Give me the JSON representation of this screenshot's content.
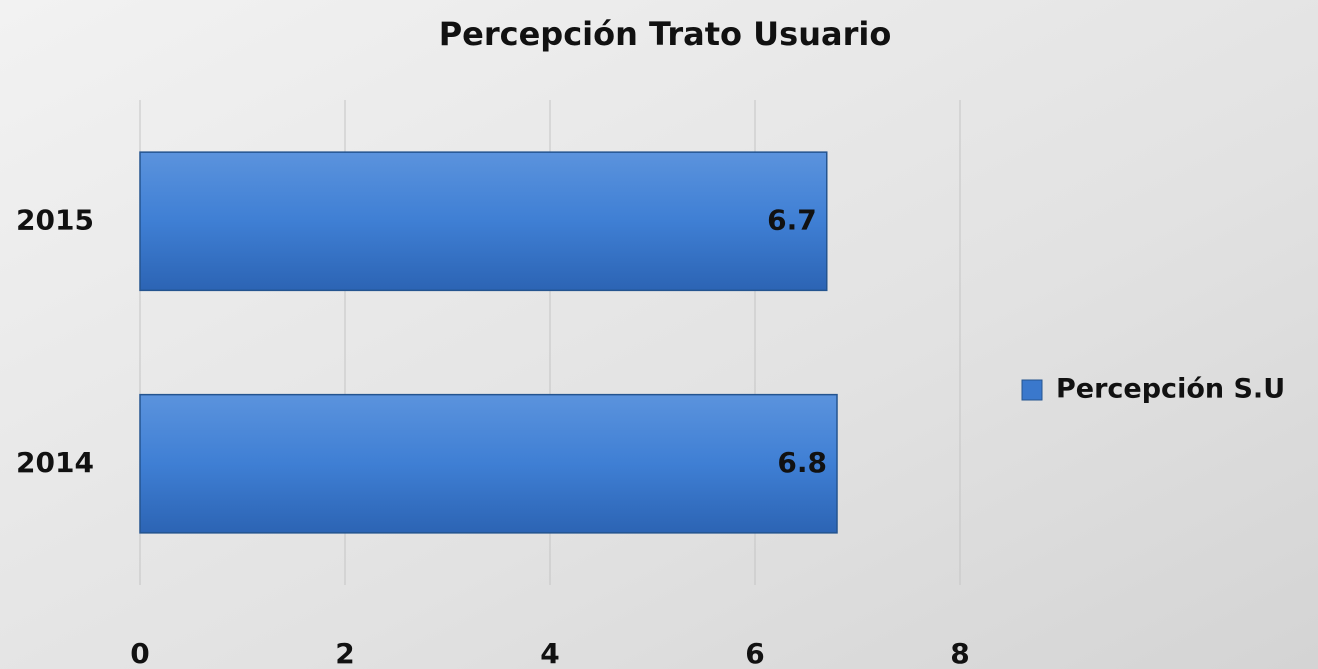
{
  "chart_data": {
    "type": "bar",
    "orientation": "horizontal",
    "title": "Percepción Trato Usuario",
    "categories": [
      "2015",
      "2014"
    ],
    "series": [
      {
        "name": "Percepción S.U",
        "color": "#3a78cc",
        "values": [
          6.7,
          6.8
        ]
      }
    ],
    "xlim": [
      0,
      8
    ],
    "xticks": [
      0,
      2,
      4,
      6,
      8
    ],
    "grid": true,
    "legend": "right"
  }
}
